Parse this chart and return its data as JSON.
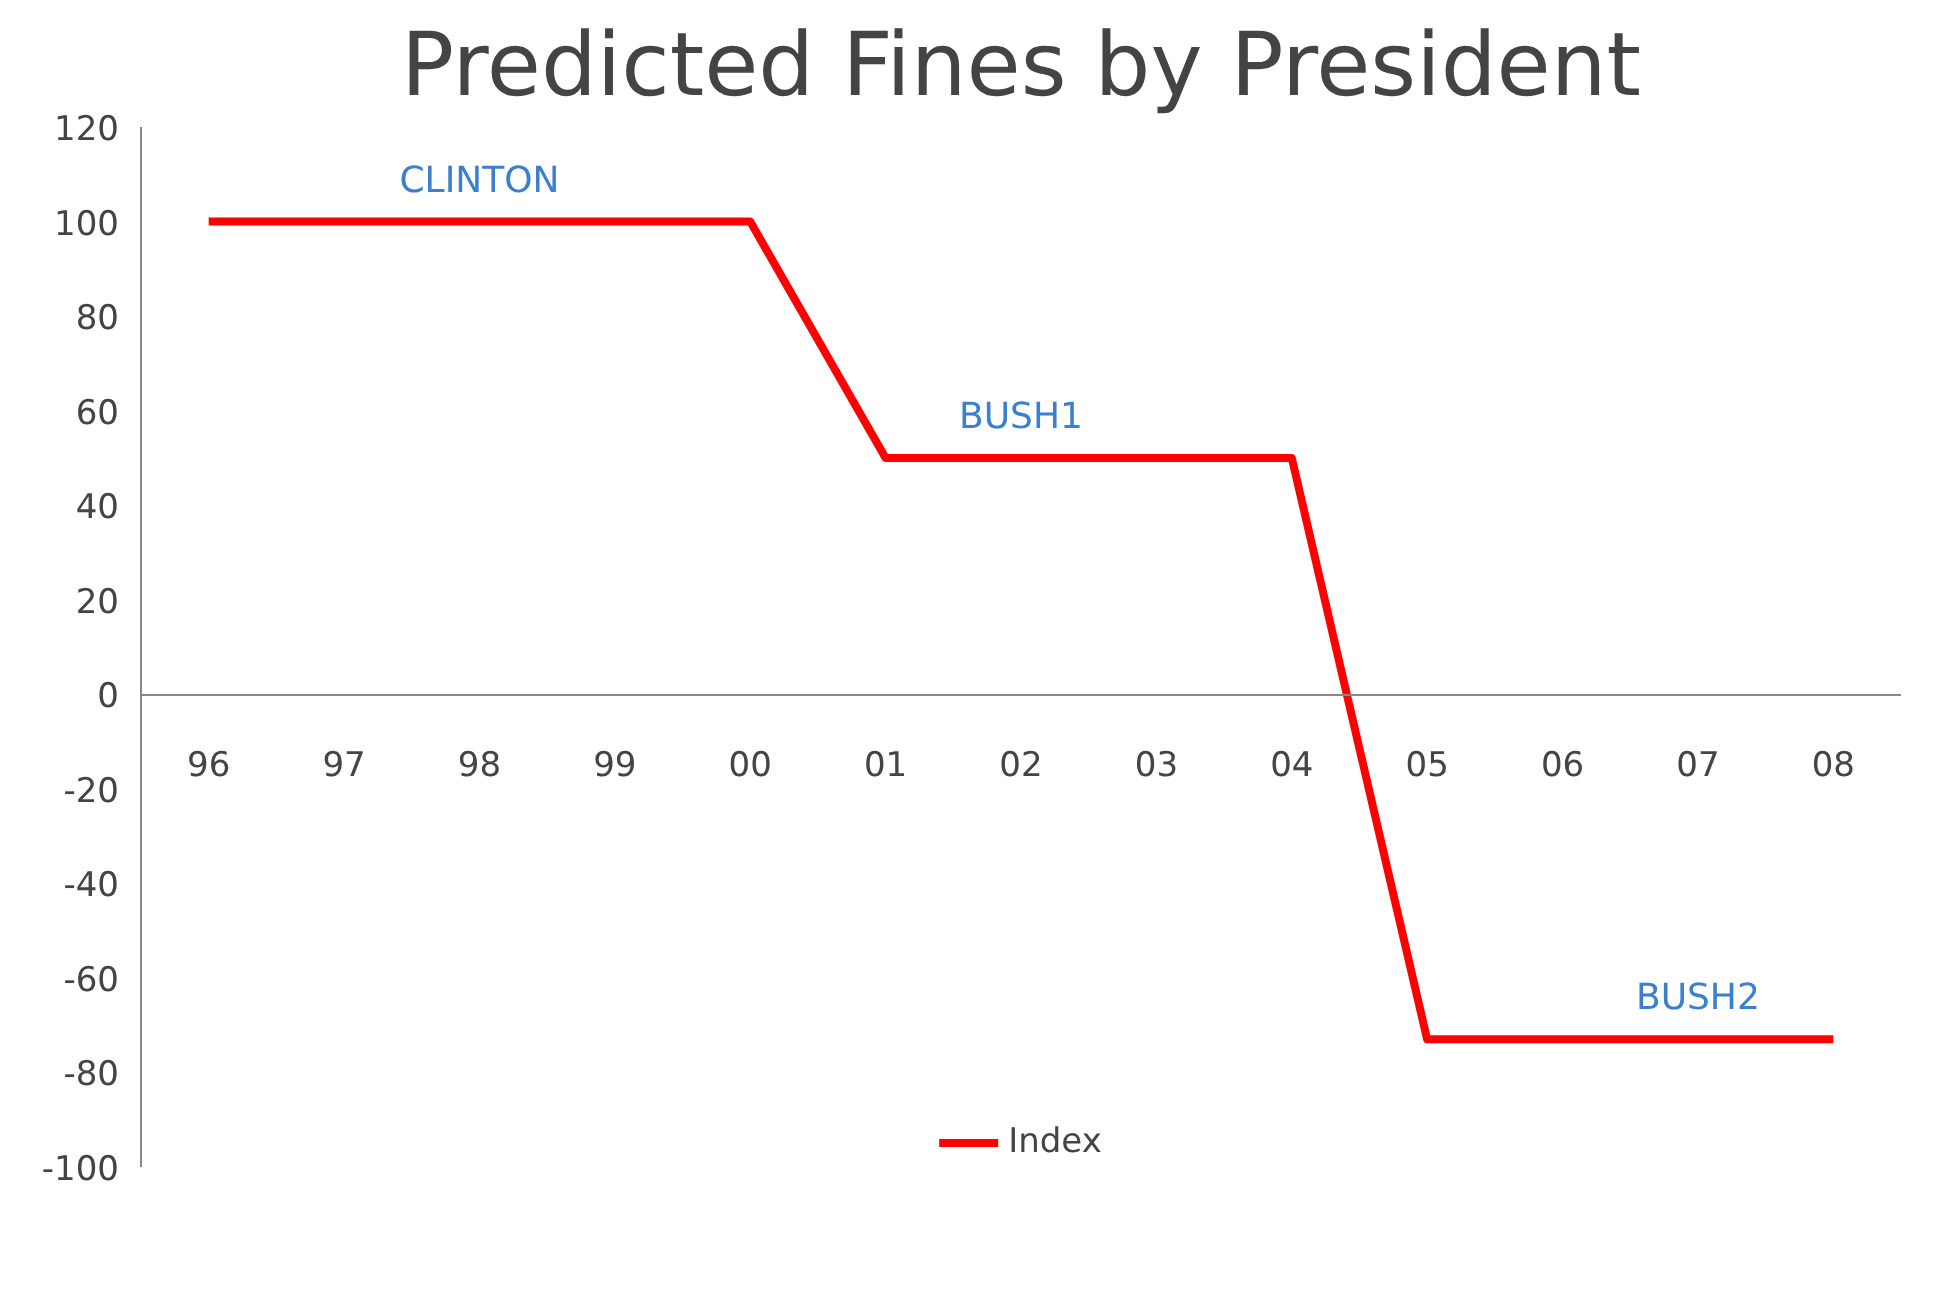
{
  "chart_data": {
    "type": "line",
    "title": "Predicted Fines by President",
    "categories": [
      "96",
      "97",
      "98",
      "99",
      "00",
      "01",
      "02",
      "03",
      "04",
      "05",
      "06",
      "07",
      "08"
    ],
    "series": [
      {
        "name": "Index",
        "color": "#ff0000",
        "values": [
          100,
          100,
          100,
          100,
          100,
          50,
          50,
          50,
          50,
          -73,
          -73,
          -73,
          -73
        ]
      }
    ],
    "ylim": [
      -100,
      120
    ],
    "yticks": [
      -100,
      -80,
      -60,
      -40,
      -20,
      0,
      20,
      40,
      60,
      80,
      100,
      120
    ],
    "grid": false,
    "legend": "bottom",
    "marker": "none",
    "line_style": "solid",
    "annotations": [
      {
        "text": "CLINTON",
        "x": "98",
        "y": 100
      },
      {
        "text": "BUSH1",
        "x": "02",
        "y": 50
      },
      {
        "text": "BUSH2",
        "x": "07",
        "y": -73
      }
    ]
  }
}
